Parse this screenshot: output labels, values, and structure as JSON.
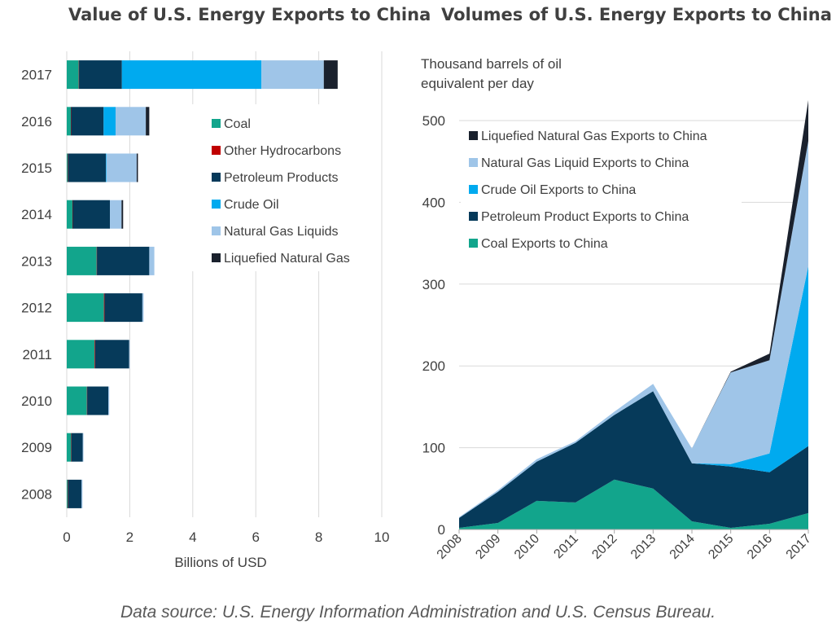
{
  "source_note": "Data source: U.S. Energy Information Administration and U.S. Census Bureau.",
  "chart_data": [
    {
      "type": "bar",
      "orientation": "horizontal",
      "stacked": true,
      "title": "Value of U.S. Energy Exports to China",
      "xlabel": "Billions of USD",
      "ylabel": "",
      "xlim": [
        0,
        10
      ],
      "xticks": [
        "0",
        "2",
        "4",
        "6",
        "8",
        "10"
      ],
      "grid": "vertical",
      "legend_position": "right-middle",
      "categories": [
        "2017",
        "2016",
        "2015",
        "2014",
        "2013",
        "2012",
        "2011",
        "2010",
        "2009",
        "2008"
      ],
      "series": [
        {
          "name": "Coal",
          "color": "#12a58c",
          "values": [
            0.38,
            0.13,
            0.03,
            0.18,
            0.95,
            1.18,
            0.88,
            0.64,
            0.14,
            0.03
          ]
        },
        {
          "name": "Other Hydrocarbons",
          "color": "#c00000",
          "values": [
            0.01,
            0.01,
            0.01,
            0.01,
            0.01,
            0.02,
            0.02,
            0.01,
            0.01,
            0.01
          ]
        },
        {
          "name": "Petroleum Products",
          "color": "#063a5a",
          "values": [
            1.36,
            1.03,
            1.2,
            1.18,
            1.66,
            1.2,
            1.08,
            0.67,
            0.36,
            0.43
          ]
        },
        {
          "name": "Crude Oil",
          "color": "#00aaef",
          "values": [
            4.43,
            0.38,
            0.02,
            0.0,
            0.0,
            0.0,
            0.0,
            0.0,
            0.0,
            0.0
          ]
        },
        {
          "name": "Natural Gas Liquids",
          "color": "#9fc5e8",
          "values": [
            1.98,
            0.96,
            0.96,
            0.37,
            0.16,
            0.04,
            0.02,
            0.03,
            0.02,
            0.03
          ]
        },
        {
          "name": "Liquefied Natural Gas",
          "color": "#1a212d",
          "values": [
            0.44,
            0.11,
            0.04,
            0.05,
            0.0,
            0.0,
            0.0,
            0.0,
            0.0,
            0.0
          ]
        }
      ]
    },
    {
      "type": "area",
      "stacked": true,
      "title": "Volumes of U.S. Energy Exports to China",
      "ylabel": "Thousand barrels of oil equivalent per day",
      "xlabel": "",
      "ylim": [
        0,
        500
      ],
      "yticks": [
        "0",
        "100",
        "200",
        "300",
        "400",
        "500"
      ],
      "grid": "horizontal",
      "legend_position": "top-left",
      "x": [
        "2008",
        "2009",
        "2010",
        "2011",
        "2012",
        "2013",
        "2014",
        "2015",
        "2016",
        "2017"
      ],
      "series": [
        {
          "name": "Coal Exports to China",
          "color": "#12a58c",
          "values": [
            2,
            8,
            35,
            33,
            61,
            50,
            10,
            2,
            7,
            20
          ]
        },
        {
          "name": "Petroleum Product Exports to China",
          "color": "#063a5a",
          "values": [
            12,
            38,
            48,
            73,
            79,
            119,
            71,
            75,
            63,
            82
          ]
        },
        {
          "name": "Crude Oil Exports to China",
          "color": "#00aaef",
          "values": [
            0,
            0,
            0,
            0,
            0,
            0,
            0,
            3,
            23,
            220
          ]
        },
        {
          "name": "Natural Gas Liquid Exports to China",
          "color": "#9fc5e8",
          "values": [
            1,
            2,
            3,
            2,
            4,
            9,
            18,
            112,
            114,
            153
          ]
        },
        {
          "name": "Liquefied Natural Gas Exports to China",
          "color": "#1a212d",
          "values": [
            0,
            0,
            0,
            0,
            0,
            0,
            0,
            1,
            8,
            50
          ]
        }
      ]
    }
  ]
}
